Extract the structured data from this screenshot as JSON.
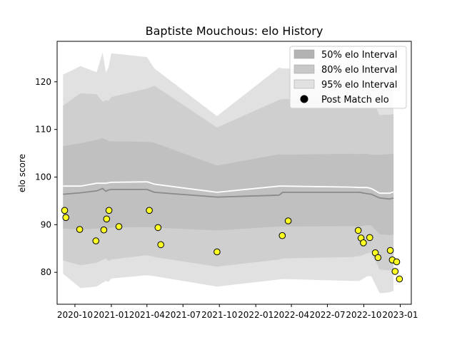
{
  "chart_data": {
    "type": "area",
    "title": "Baptiste Mouchous: elo History",
    "ylabel": "elo score",
    "xlabel": "",
    "ylim": [
      73.3,
      128.5
    ],
    "xlim": [
      "2020-08-17",
      "2023-01-29"
    ],
    "y_ticks": [
      80,
      90,
      100,
      110,
      120
    ],
    "x_ticks": [
      "2020-10",
      "2021-01",
      "2021-04",
      "2021-07",
      "2021-10",
      "2022-01",
      "2022-04",
      "2022-07",
      "2022-10",
      "2023-01"
    ],
    "grid": false,
    "legend_position": "top-right",
    "legend": [
      {
        "label": "50% elo Interval",
        "kind": "patch",
        "color": "#b3b3b3"
      },
      {
        "label": "80% elo Interval",
        "kind": "patch",
        "color": "#c8c8c8"
      },
      {
        "label": "95% elo Interval",
        "kind": "patch",
        "color": "#e1e1e1"
      },
      {
        "label": "Post Match elo",
        "kind": "marker",
        "color": "#000000"
      }
    ],
    "colors": {
      "band95": "#e1e1e1",
      "band80": "#cfcfcf",
      "band50": "#c0c0c0",
      "mean_line": "#8a8a8a",
      "upper_line": "#ffffff",
      "point_fill": "#ffff22",
      "point_edge": "#000000"
    },
    "x": [
      "2020-09-01",
      "2020-10-15",
      "2020-11-25",
      "2020-12-10",
      "2020-12-18",
      "2020-12-25",
      "2021-01-01",
      "2021-04-01",
      "2021-04-20",
      "2021-09-25",
      "2022-03-01",
      "2022-03-10",
      "2022-09-01",
      "2022-09-20",
      "2022-10-10",
      "2022-10-20",
      "2022-11-10",
      "2022-12-05",
      "2022-12-15"
    ],
    "series": [
      {
        "name": "95% elo Interval",
        "role": "band",
        "lower": [
          79.7,
          76.7,
          77.0,
          77.8,
          78.2,
          78.0,
          78.7,
          79.4,
          79.2,
          77.0,
          78.5,
          78.6,
          78.2,
          78.2,
          79.2,
          79.2,
          75.6,
          75.8,
          76.1
        ],
        "upper": [
          121.5,
          123.3,
          122.0,
          126.2,
          122.0,
          123.0,
          126.0,
          125.2,
          122.8,
          112.8,
          123.0,
          122.8,
          122.5,
          122.2,
          122.8,
          122.5,
          122.8,
          122.3,
          122.2
        ]
      },
      {
        "name": "80% elo Interval",
        "role": "band",
        "lower": [
          82.5,
          81.5,
          82.0,
          82.6,
          82.9,
          82.4,
          82.7,
          83.6,
          83.2,
          81.2,
          82.7,
          82.9,
          83.2,
          83.4,
          84.0,
          84.2,
          80.6,
          80.4,
          80.6
        ],
        "upper": [
          115.0,
          117.6,
          117.4,
          115.8,
          116.1,
          116.0,
          116.8,
          118.6,
          119.2,
          110.4,
          116.2,
          116.4,
          116.3,
          116.1,
          116.7,
          116.5,
          113.0,
          113.1,
          113.2
        ]
      },
      {
        "name": "50% elo Interval",
        "role": "band",
        "lower": [
          89.2,
          89.0,
          89.2,
          89.3,
          89.3,
          89.2,
          89.4,
          89.5,
          89.4,
          88.8,
          89.6,
          89.6,
          89.7,
          89.6,
          89.9,
          89.8,
          88.0,
          87.8,
          87.9
        ],
        "upper": [
          106.5,
          107.1,
          107.8,
          108.2,
          107.9,
          107.6,
          107.5,
          107.4,
          107.2,
          102.4,
          104.8,
          104.7,
          104.9,
          104.8,
          104.9,
          104.7,
          104.7,
          104.8,
          104.9
        ]
      },
      {
        "role": "mean",
        "values": [
          96.4,
          96.7,
          97.1,
          97.6,
          97.0,
          97.3,
          97.4,
          97.4,
          96.8,
          95.8,
          96.2,
          96.8,
          96.8,
          96.8,
          96.5,
          96.4,
          95.6,
          95.4,
          95.6
        ]
      },
      {
        "role": "upper",
        "values": [
          98.1,
          98.1,
          98.7,
          98.7,
          98.7,
          98.8,
          98.9,
          99.0,
          98.5,
          96.8,
          98.1,
          98.1,
          97.9,
          97.8,
          97.8,
          97.6,
          96.6,
          96.6,
          96.9
        ]
      }
    ],
    "points": [
      {
        "x": "2020-09-05",
        "y": 93.0
      },
      {
        "x": "2020-09-08",
        "y": 91.5
      },
      {
        "x": "2020-10-13",
        "y": 89.0
      },
      {
        "x": "2020-11-23",
        "y": 86.6
      },
      {
        "x": "2020-12-13",
        "y": 88.9
      },
      {
        "x": "2020-12-20",
        "y": 91.2
      },
      {
        "x": "2020-12-26",
        "y": 93.0
      },
      {
        "x": "2021-01-20",
        "y": 89.6
      },
      {
        "x": "2021-04-07",
        "y": 93.0
      },
      {
        "x": "2021-04-29",
        "y": 89.4
      },
      {
        "x": "2021-05-06",
        "y": 85.8
      },
      {
        "x": "2021-09-25",
        "y": 84.3
      },
      {
        "x": "2022-03-09",
        "y": 87.7
      },
      {
        "x": "2022-03-24",
        "y": 90.8
      },
      {
        "x": "2022-09-17",
        "y": 88.8
      },
      {
        "x": "2022-09-24",
        "y": 87.2
      },
      {
        "x": "2022-09-30",
        "y": 86.2
      },
      {
        "x": "2022-10-16",
        "y": 87.3
      },
      {
        "x": "2022-10-30",
        "y": 84.1
      },
      {
        "x": "2022-11-06",
        "y": 83.1
      },
      {
        "x": "2022-12-07",
        "y": 84.6
      },
      {
        "x": "2022-12-12",
        "y": 82.6
      },
      {
        "x": "2022-12-19",
        "y": 80.2
      },
      {
        "x": "2022-12-23",
        "y": 82.2
      },
      {
        "x": "2022-12-30",
        "y": 78.6
      }
    ]
  }
}
